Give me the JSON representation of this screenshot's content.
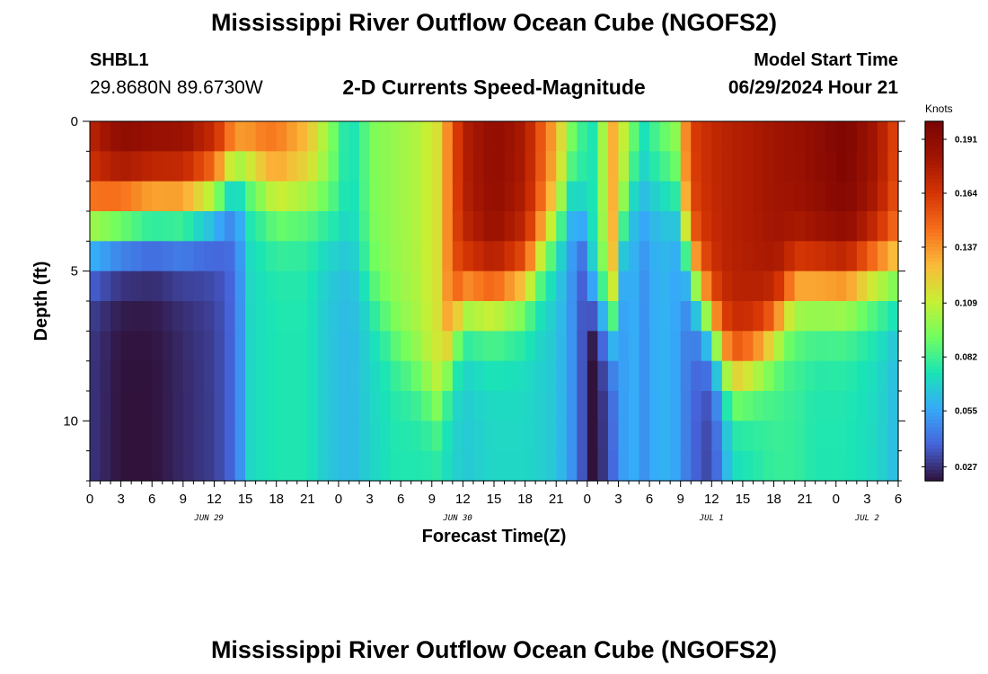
{
  "header": {
    "title": "Mississippi River Outflow Ocean Cube (NGOFS2)",
    "station_id": "SHBL1",
    "coordinates": "29.8680N  89.6730W",
    "subtitle": "2-D Currents Speed-Magnitude",
    "model_start_label": "Model Start Time",
    "model_start_value": "06/29/2024 Hour 21"
  },
  "footer": {
    "repeat_title": "Mississippi River Outflow Ocean Cube (NGOFS2)"
  },
  "chart_data": {
    "type": "heatmap",
    "xlabel": "Forecast Time(Z)",
    "ylabel": "Depth (ft)",
    "x_range_hours": [
      0,
      78
    ],
    "y_range_ft": [
      0,
      12
    ],
    "y_ticks": [
      0,
      5,
      10
    ],
    "y_tick_labels": [
      "0",
      "5",
      "10"
    ],
    "x_tick_labels": [
      "0",
      "3",
      "6",
      "9",
      "12",
      "15",
      "18",
      "21",
      "0",
      "3",
      "6",
      "9",
      "12",
      "15",
      "18",
      "21",
      "0",
      "3",
      "6",
      "9",
      "12",
      "15",
      "18",
      "21",
      "0",
      "3",
      "6"
    ],
    "date_labels": [
      {
        "text": "JUN 29",
        "hour": 11.5
      },
      {
        "text": "JUN 30",
        "hour": 35.5
      },
      {
        "text": "JUL 1",
        "hour": 60
      },
      {
        "text": "JUL 2",
        "hour": 75
      }
    ],
    "colorbar": {
      "unit": "Knots",
      "min": 0.02,
      "max": 0.2,
      "ticks": [
        0.191,
        0.164,
        0.137,
        0.109,
        0.082,
        0.055,
        0.027
      ],
      "colormap": "turbo"
    },
    "depth_levels_ft": [
      0.5,
      1.5,
      2.5,
      3.5,
      4.5,
      5.5,
      6.5,
      7.5,
      8.5,
      9.5,
      10.5,
      11.5
    ],
    "profile_hours": [
      0,
      3,
      6,
      9,
      12,
      14,
      15.5,
      18,
      21,
      23,
      25,
      27.5,
      29.5,
      31.5,
      33.5,
      36,
      39,
      42,
      45,
      47,
      48.5,
      50.5,
      52,
      53.5,
      55,
      56.5,
      58,
      60,
      62,
      64,
      66,
      68,
      70,
      73,
      76,
      78
    ],
    "surface_knots": [
      0.175,
      0.195,
      0.192,
      0.19,
      0.178,
      0.16,
      0.155,
      0.148,
      0.13,
      0.1,
      0.07,
      0.095,
      0.1,
      0.105,
      0.115,
      0.175,
      0.19,
      0.178,
      0.13,
      0.085,
      0.075,
      0.13,
      0.1,
      0.075,
      0.09,
      0.1,
      0.16,
      0.17,
      0.175,
      0.178,
      0.182,
      0.185,
      0.19,
      0.198,
      0.18,
      0.155
    ],
    "surface_layer_depth_ft": [
      3.5,
      3.2,
      3,
      3,
      2.5,
      1.5,
      1.5,
      2.5,
      2.5,
      3,
      4,
      6,
      7.5,
      8.5,
      9.5,
      6,
      6,
      5.5,
      3.5,
      2,
      6,
      6.5,
      2,
      2.5,
      2,
      2.5,
      5,
      7,
      8.5,
      8,
      7,
      5.5,
      5.5,
      5.5,
      5,
      5
    ],
    "bottom_knots": [
      0.028,
      0.02,
      0.02,
      0.025,
      0.03,
      0.04,
      0.07,
      0.075,
      0.075,
      0.065,
      0.06,
      0.07,
      0.075,
      0.075,
      0.075,
      0.065,
      0.07,
      0.07,
      0.065,
      0.045,
      0.015,
      0.04,
      0.06,
      0.05,
      0.06,
      0.055,
      0.04,
      0.03,
      0.07,
      0.075,
      0.08,
      0.08,
      0.075,
      0.075,
      0.07,
      0.06
    ]
  }
}
